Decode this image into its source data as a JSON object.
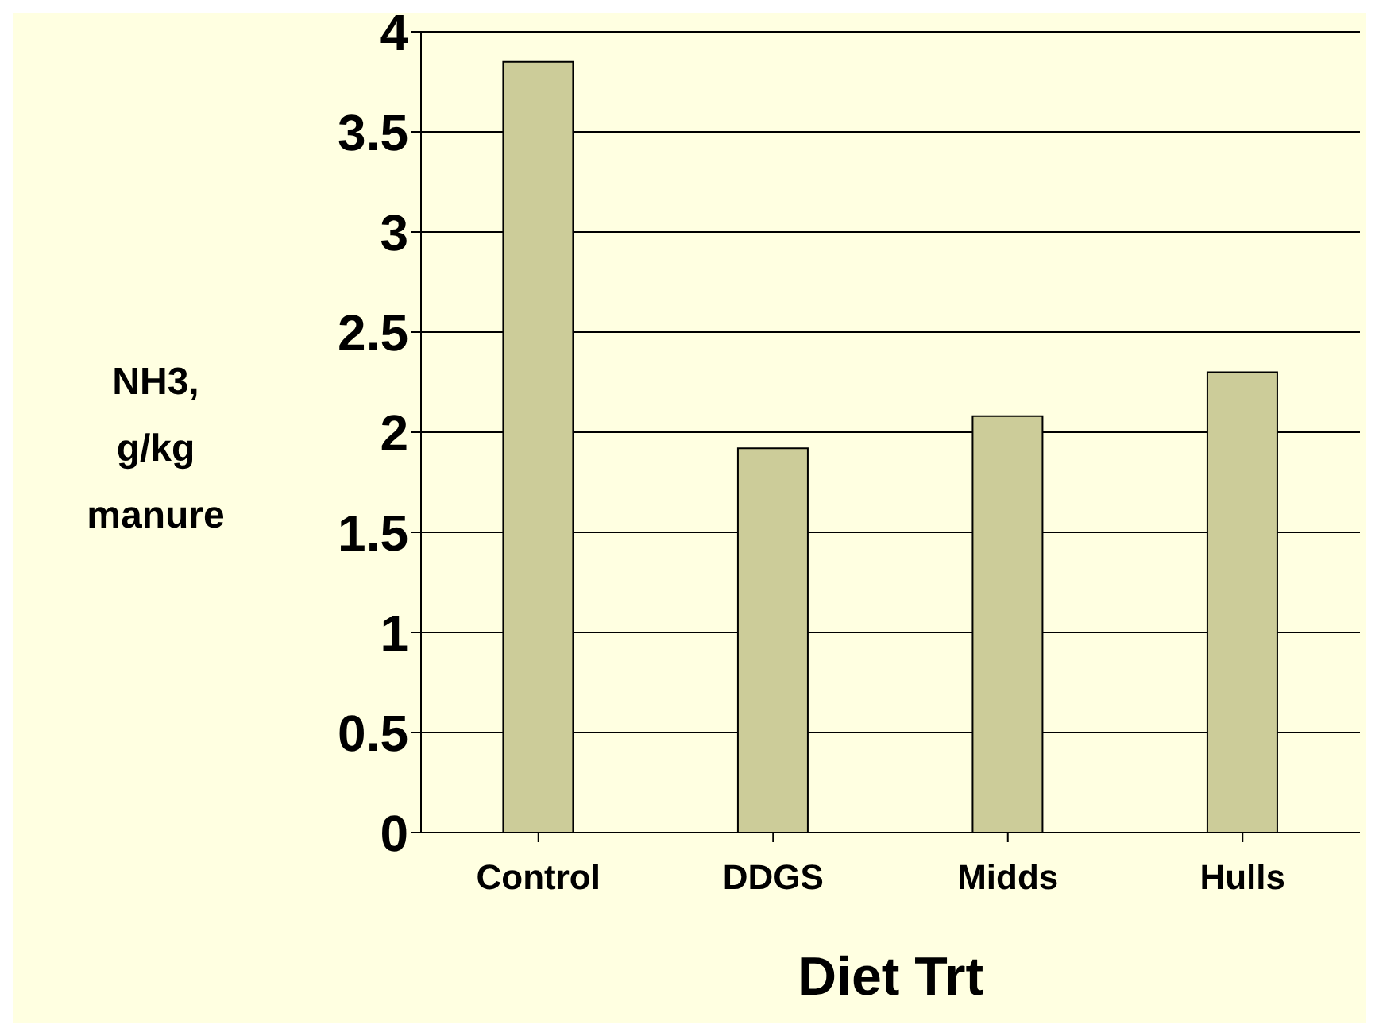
{
  "chart_data": {
    "type": "bar",
    "categories": [
      "Control",
      "DDGS",
      "Midds",
      "Hulls"
    ],
    "values": [
      3.85,
      1.92,
      2.08,
      2.3
    ],
    "color": "#cccc99",
    "xlabel": "Diet Trt",
    "ylabel": "NH3,\ng/kg\nmanure",
    "ylim": [
      0,
      4
    ],
    "yticks": [
      0,
      0.5,
      1,
      1.5,
      2,
      2.5,
      3,
      3.5,
      4
    ],
    "grid": "y",
    "legend": false
  }
}
